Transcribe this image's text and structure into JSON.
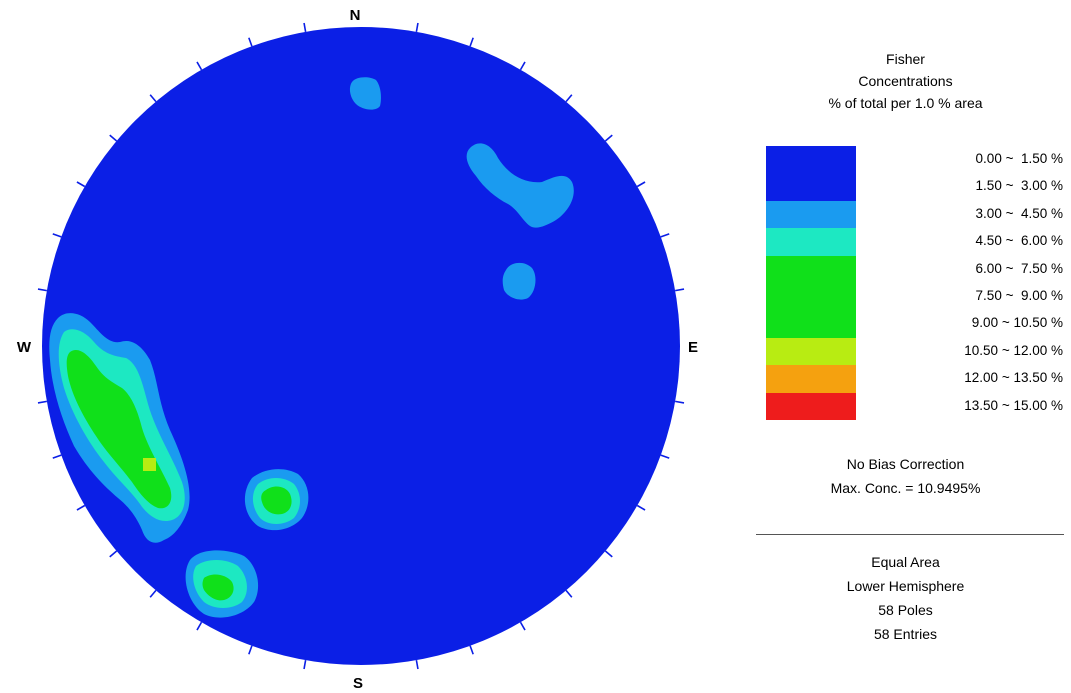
{
  "chart_data": {
    "type": "heatmap",
    "subtype": "stereonet-pole-density",
    "compass_labels": {
      "north": "N",
      "south": "S",
      "east": "E",
      "west": "W"
    },
    "legend_title": [
      "Fisher",
      "Concentrations",
      "% of total per 1.0 % area"
    ],
    "bins": [
      {
        "from": 0.0,
        "to": 1.5,
        "label": "0.00 ~  1.50 %",
        "color": "#0b1fe6"
      },
      {
        "from": 1.5,
        "to": 3.0,
        "label": "1.50 ~  3.00 %",
        "color": "#0b1fe6"
      },
      {
        "from": 3.0,
        "to": 4.5,
        "label": "3.00 ~  4.50 %",
        "color": "#1a9bf0"
      },
      {
        "from": 4.5,
        "to": 6.0,
        "label": "4.50 ~  6.00 %",
        "color": "#1de8c2"
      },
      {
        "from": 6.0,
        "to": 7.5,
        "label": "6.00 ~  7.50 %",
        "color": "#10e01a"
      },
      {
        "from": 7.5,
        "to": 9.0,
        "label": "7.50 ~  9.00 %",
        "color": "#10e01a"
      },
      {
        "from": 9.0,
        "to": 10.5,
        "label": "9.00 ~ 10.50 %",
        "color": "#10e01a"
      },
      {
        "from": 10.5,
        "to": 12.0,
        "label": "10.50 ~ 12.00 %",
        "color": "#b8ec12"
      },
      {
        "from": 12.0,
        "to": 13.5,
        "label": "12.00 ~ 13.50 %",
        "color": "#f5a10f"
      },
      {
        "from": 13.5,
        "to": 15.0,
        "label": "13.50 ~ 15.00 %",
        "color": "#ee1c1c"
      }
    ],
    "correction": "No Bias Correction",
    "max_concentration": "Max. Conc. = 10.9495%",
    "projection": [
      "Equal Area",
      "Lower Hemisphere",
      "58 Poles",
      "58 Entries"
    ]
  }
}
